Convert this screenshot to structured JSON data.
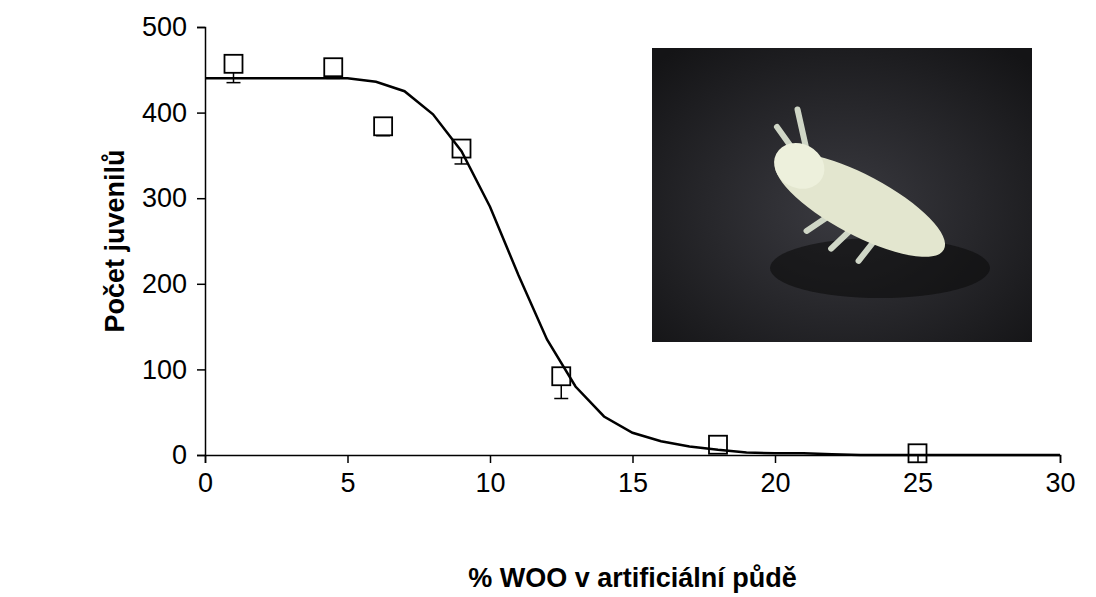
{
  "chart_data": {
    "type": "scatter",
    "x_label": "% WOO v artificiální půdě",
    "y_label": "Počet juvenilů",
    "xlim": [
      0,
      30
    ],
    "xticks": [
      0,
      5,
      10,
      15,
      20,
      25,
      30
    ],
    "ylim": [
      0,
      500
    ],
    "yticks": [
      0,
      100,
      200,
      300,
      400,
      500
    ],
    "grid": false,
    "series": [
      {
        "type": "scatter",
        "marker": "square",
        "color": "#000000",
        "x": [
          1,
          4.5,
          6.25,
          9,
          12.5,
          18,
          25
        ],
        "values": [
          457,
          453,
          384,
          358,
          92,
          12,
          2
        ],
        "errors": [
          22,
          13,
          11,
          18,
          26,
          5,
          0
        ]
      },
      {
        "type": "line",
        "line_style": "solid",
        "color": "#000000",
        "x": [
          0,
          1,
          2,
          3,
          4,
          5,
          6,
          7,
          8,
          9,
          10,
          11,
          12,
          13,
          14,
          15,
          16,
          17,
          18,
          19,
          20,
          21,
          22,
          23,
          24,
          25,
          26,
          27,
          28,
          29,
          30
        ],
        "values": [
          440,
          440,
          440,
          440,
          440,
          440,
          436,
          425,
          398,
          355,
          290,
          210,
          135,
          80,
          45,
          26,
          16,
          10,
          6,
          3,
          2,
          2,
          1,
          0,
          0,
          0,
          0,
          0,
          0,
          0,
          0
        ]
      }
    ]
  }
}
